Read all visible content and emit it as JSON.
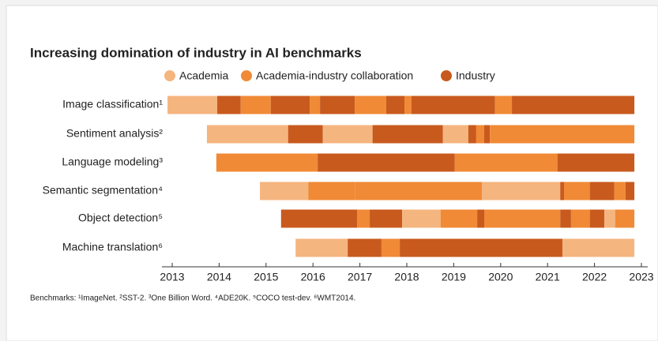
{
  "chart_data": {
    "type": "timeline",
    "title": "Increasing domination of industry in AI benchmarks",
    "series": [
      {
        "name": "Academia",
        "color": "#f5b57f"
      },
      {
        "name": "Academia-industry collaboration",
        "color": "#f08a36"
      },
      {
        "name": "Industry",
        "color": "#c85a1e"
      }
    ],
    "rows": [
      {
        "label": "Image classification¹",
        "segments": [
          {
            "start": 2012.9,
            "end": 2013.96,
            "series": 0
          },
          {
            "start": 2013.96,
            "end": 2014.46,
            "series": 2
          },
          {
            "start": 2014.46,
            "end": 2015.1,
            "series": 1
          },
          {
            "start": 2015.1,
            "end": 2015.93,
            "series": 2
          },
          {
            "start": 2015.93,
            "end": 2016.15,
            "series": 1
          },
          {
            "start": 2016.15,
            "end": 2016.89,
            "series": 2
          },
          {
            "start": 2016.89,
            "end": 2017.56,
            "series": 1
          },
          {
            "start": 2017.56,
            "end": 2017.95,
            "series": 2
          },
          {
            "start": 2017.95,
            "end": 2018.1,
            "series": 1
          },
          {
            "start": 2018.1,
            "end": 2019.88,
            "series": 2
          },
          {
            "start": 2019.88,
            "end": 2020.24,
            "series": 1
          },
          {
            "start": 2020.24,
            "end": 2022.85,
            "series": 2
          }
        ]
      },
      {
        "label": "Sentiment analysis²",
        "segments": [
          {
            "start": 2013.74,
            "end": 2015.47,
            "series": 0
          },
          {
            "start": 2015.47,
            "end": 2016.21,
            "series": 2
          },
          {
            "start": 2016.21,
            "end": 2017.27,
            "series": 0
          },
          {
            "start": 2017.27,
            "end": 2018.77,
            "series": 2
          },
          {
            "start": 2018.77,
            "end": 2019.31,
            "series": 0
          },
          {
            "start": 2019.31,
            "end": 2019.48,
            "series": 2
          },
          {
            "start": 2019.48,
            "end": 2019.65,
            "series": 1
          },
          {
            "start": 2019.65,
            "end": 2019.77,
            "series": 2
          },
          {
            "start": 2019.77,
            "end": 2022.85,
            "series": 1
          }
        ]
      },
      {
        "label": "Language modeling³",
        "segments": [
          {
            "start": 2013.94,
            "end": 2016.1,
            "series": 1
          },
          {
            "start": 2016.1,
            "end": 2019.02,
            "series": 2
          },
          {
            "start": 2019.02,
            "end": 2021.21,
            "series": 1
          },
          {
            "start": 2021.21,
            "end": 2022.85,
            "series": 2
          }
        ]
      },
      {
        "label": "Semantic segmentation⁴",
        "segments": [
          {
            "start": 2014.87,
            "end": 2015.9,
            "series": 0
          },
          {
            "start": 2015.9,
            "end": 2016.9,
            "series": 1
          },
          {
            "start": 2016.9,
            "end": 2019.6,
            "series": 1
          },
          {
            "start": 2019.6,
            "end": 2021.27,
            "series": 0
          },
          {
            "start": 2021.27,
            "end": 2021.35,
            "series": 2
          },
          {
            "start": 2021.35,
            "end": 2021.9,
            "series": 1
          },
          {
            "start": 2021.9,
            "end": 2022.42,
            "series": 2
          },
          {
            "start": 2022.42,
            "end": 2022.66,
            "series": 1
          },
          {
            "start": 2022.66,
            "end": 2022.85,
            "series": 2
          }
        ]
      },
      {
        "label": "Object detection⁵",
        "segments": [
          {
            "start": 2015.32,
            "end": 2016.94,
            "series": 2
          },
          {
            "start": 2016.94,
            "end": 2017.21,
            "series": 1
          },
          {
            "start": 2017.21,
            "end": 2017.9,
            "series": 2
          },
          {
            "start": 2017.9,
            "end": 2018.72,
            "series": 0
          },
          {
            "start": 2018.72,
            "end": 2019.5,
            "series": 1
          },
          {
            "start": 2019.5,
            "end": 2019.65,
            "series": 2
          },
          {
            "start": 2019.65,
            "end": 2021.27,
            "series": 1
          },
          {
            "start": 2021.27,
            "end": 2021.5,
            "series": 2
          },
          {
            "start": 2021.5,
            "end": 2021.9,
            "series": 1
          },
          {
            "start": 2021.9,
            "end": 2022.21,
            "series": 2
          },
          {
            "start": 2022.21,
            "end": 2022.44,
            "series": 0
          },
          {
            "start": 2022.44,
            "end": 2022.85,
            "series": 1
          }
        ]
      },
      {
        "label": "Machine translation⁶",
        "segments": [
          {
            "start": 2015.63,
            "end": 2016.74,
            "series": 0
          },
          {
            "start": 2016.74,
            "end": 2017.46,
            "series": 2
          },
          {
            "start": 2017.46,
            "end": 2017.85,
            "series": 1
          },
          {
            "start": 2017.85,
            "end": 2021.32,
            "series": 2
          },
          {
            "start": 2021.32,
            "end": 2022.85,
            "series": 0
          }
        ]
      }
    ],
    "xlim": [
      2013,
      2023
    ],
    "xticks": [
      2013,
      2014,
      2015,
      2016,
      2017,
      2018,
      2019,
      2020,
      2021,
      2022,
      2023
    ],
    "footnote": "Benchmarks: ¹ImageNet. ²SST-2. ³One Billion Word. ⁴ADE20K. ⁵COCO test-dev. ⁶WMT2014."
  }
}
